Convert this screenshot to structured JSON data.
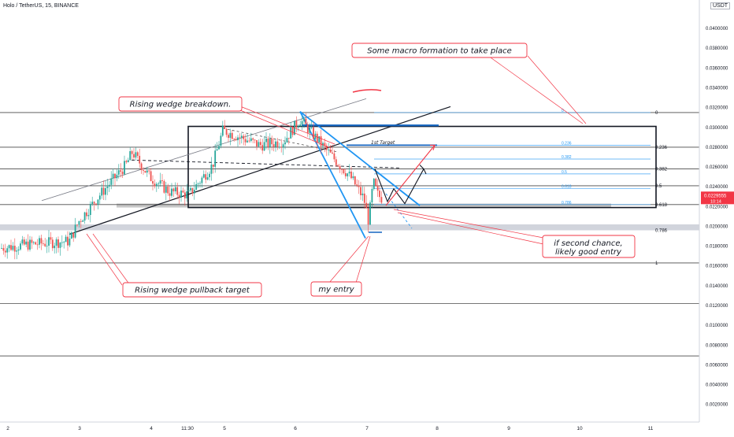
{
  "chart_data": {
    "type": "candlestick",
    "title": "Holo / TetherUS, 15, BINANCE",
    "currency": "USDT",
    "x_ticks": [
      "2",
      "3",
      "4",
      "11:30",
      "5",
      "6",
      "7",
      "8",
      "9",
      "10",
      "11"
    ],
    "y_ticks": [
      "0.0400000",
      "0.0380000",
      "0.0360000",
      "0.0340000",
      "0.0320000",
      "0.0300000",
      "0.0280000",
      "0.0260000",
      "0.0240000",
      "0.0220000",
      "0.0200000",
      "0.0180000",
      "0.0160000",
      "0.0140000",
      "0.0120000",
      "0.0100000",
      "0.0080000",
      "0.0060000",
      "0.0040000",
      "0.0020000"
    ],
    "y_values": [
      0.04,
      0.038,
      0.036,
      0.034,
      0.032,
      0.03,
      0.028,
      0.026,
      0.024,
      0.022,
      0.02,
      0.018,
      0.016,
      0.014,
      0.012,
      0.01,
      0.008,
      0.006,
      0.004,
      0.002
    ],
    "ylim": [
      0.0007,
      0.0416
    ],
    "xlim": [
      2,
      11
    ],
    "last_price": "0.0229555",
    "last_price_value": 0.0229555,
    "countdown": "10:14",
    "fib_left": {
      "levels": [
        "0",
        "0.236",
        "0.382",
        "0.5",
        "0.618",
        "0.786",
        "1"
      ],
      "values": [
        0.0315,
        0.028,
        0.0258,
        0.0241,
        0.0222,
        0.0196,
        0.0163
      ]
    },
    "fib_right": {
      "levels": [
        "0",
        "0.236",
        "0.382",
        "0.5",
        "0.618",
        "0.786"
      ],
      "values": [
        0.0315,
        0.0282,
        0.0268,
        0.0253,
        0.0238,
        0.0222
      ]
    },
    "horizontal_lines": [
      0.0315,
      0.028,
      0.0258,
      0.0241,
      0.0222,
      0.0163,
      0.0122,
      0.0069
    ],
    "labels": {
      "target": "1st Target",
      "macro": "Some macro formation to take place",
      "breakdown": "Rising wedge breakdown.",
      "pullback": "Rising wedge pullback target",
      "entry": "my entry",
      "second_line1": "if second chance,",
      "second_line2": "likely good entry"
    },
    "colors": {
      "up": "#26a69a",
      "down": "#ef5350",
      "annotation": "#f23645",
      "fib_blue": "#2196f3",
      "dark": "#131722"
    }
  }
}
